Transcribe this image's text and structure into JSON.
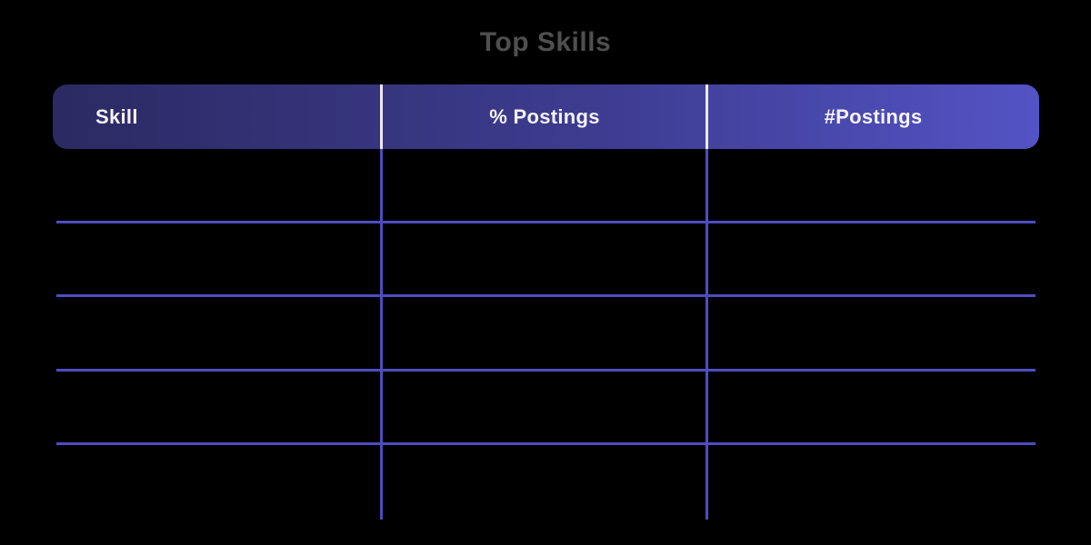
{
  "title": "Top Skills",
  "colors": {
    "background": "#000000",
    "title_text": "#4f4f4f",
    "header_gradient_start": "#2b2a62",
    "header_gradient_end": "#5453c5",
    "header_text": "#f5f3fc",
    "header_divider": "#eceaf6",
    "grid_line": "#4e4cc0"
  },
  "table": {
    "columns": [
      {
        "label": "Skill",
        "align": "left"
      },
      {
        "label": "% Postings",
        "align": "center"
      },
      {
        "label": "#Postings",
        "align": "center"
      }
    ],
    "rows": [
      {
        "skill": "",
        "pct_postings": "",
        "num_postings": ""
      },
      {
        "skill": "",
        "pct_postings": "",
        "num_postings": ""
      },
      {
        "skill": "",
        "pct_postings": "",
        "num_postings": ""
      },
      {
        "skill": "",
        "pct_postings": "",
        "num_postings": ""
      },
      {
        "skill": "",
        "pct_postings": "",
        "num_postings": ""
      }
    ]
  },
  "chart_data": {
    "type": "table",
    "title": "Top Skills",
    "columns": [
      "Skill",
      "% Postings",
      "#Postings"
    ],
    "rows": [
      [
        "",
        "",
        ""
      ],
      [
        "",
        "",
        ""
      ],
      [
        "",
        "",
        ""
      ],
      [
        "",
        "",
        ""
      ],
      [
        "",
        "",
        ""
      ]
    ],
    "notes": "Table body cells are rendered empty in the screenshot; grid lines only."
  }
}
